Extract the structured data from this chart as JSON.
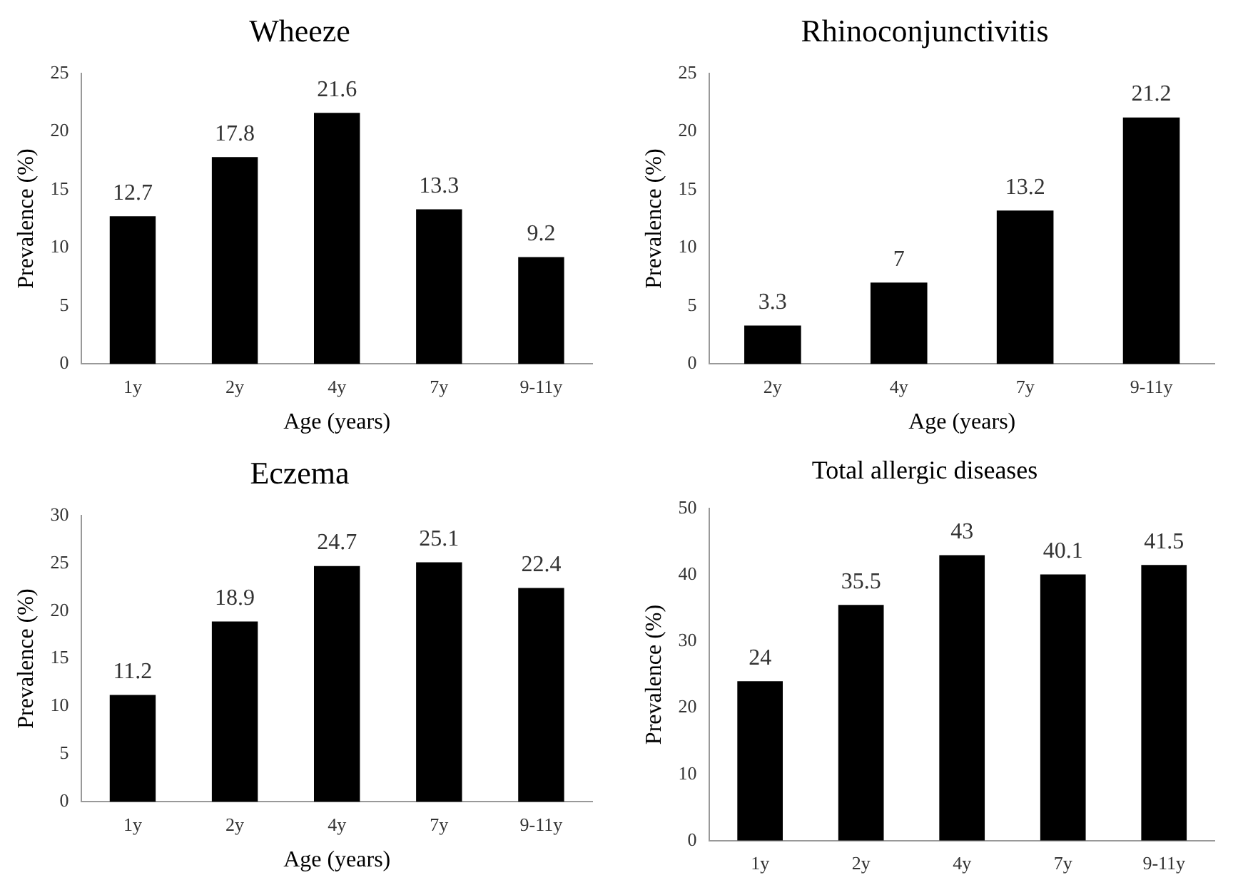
{
  "chart_data": [
    {
      "type": "bar",
      "title": "Wheeze",
      "xlabel": "Age (years)",
      "ylabel": "Prevalence (%)",
      "categories": [
        "1y",
        "2y",
        "4y",
        "7y",
        "9-11y"
      ],
      "values": [
        12.7,
        17.8,
        21.6,
        13.3,
        9.2
      ],
      "color": "#000000",
      "ylim": [
        0,
        25
      ],
      "yticks": [
        0,
        5,
        10,
        15,
        20,
        25
      ],
      "grid": false,
      "data_labels": true
    },
    {
      "type": "bar",
      "title": "Rhinoconjunctivitis",
      "xlabel": "Age (years)",
      "ylabel": "Prevalence (%)",
      "categories": [
        "2y",
        "4y",
        "7y",
        "9-11y"
      ],
      "values": [
        3.3,
        7,
        13.2,
        21.2
      ],
      "color": "#000000",
      "ylim": [
        0,
        25
      ],
      "yticks": [
        0,
        5,
        10,
        15,
        20,
        25
      ],
      "grid": false,
      "data_labels": true
    },
    {
      "type": "bar",
      "title": "Eczema",
      "xlabel": "Age (years)",
      "ylabel": "Prevalence (%)",
      "categories": [
        "1y",
        "2y",
        "4y",
        "7y",
        "9-11y"
      ],
      "values": [
        11.2,
        18.9,
        24.7,
        25.1,
        22.4
      ],
      "color": "#000000",
      "ylim": [
        0,
        30
      ],
      "yticks": [
        0,
        5,
        10,
        15,
        20,
        25,
        30
      ],
      "grid": false,
      "data_labels": true
    },
    {
      "type": "bar",
      "title": "Total allergic diseases",
      "ylabel": "Prevalence (%)",
      "categories": [
        "1y",
        "2y",
        "4y",
        "7y",
        "9-11y"
      ],
      "values": [
        24,
        35.5,
        43,
        40.1,
        41.5
      ],
      "color": "#000000",
      "ylim": [
        0,
        50
      ],
      "yticks": [
        0,
        10,
        20,
        30,
        40,
        50
      ],
      "grid": false,
      "data_labels": true
    }
  ]
}
